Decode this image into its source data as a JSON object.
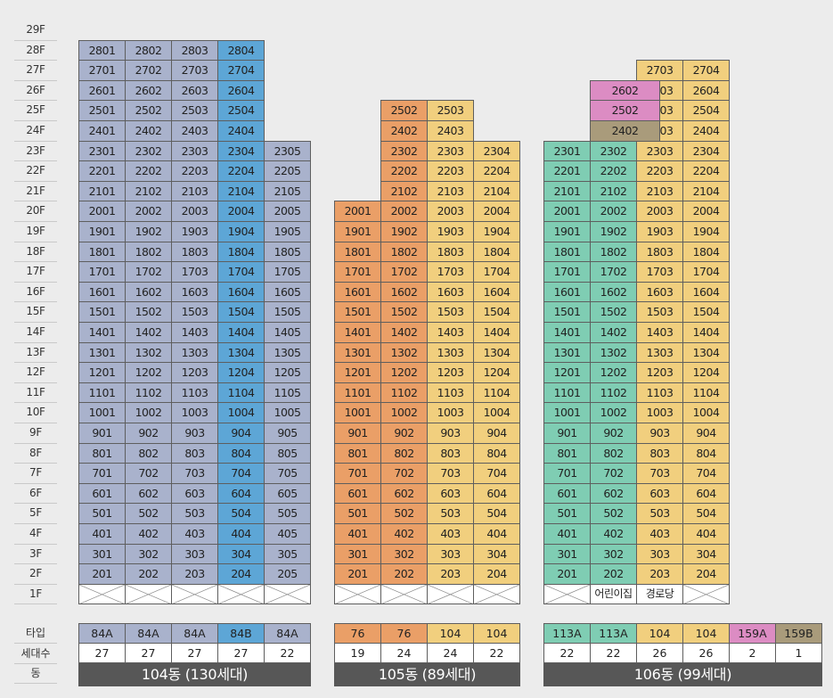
{
  "floor_labels": [
    "29F",
    "28F",
    "27F",
    "26F",
    "25F",
    "24F",
    "23F",
    "22F",
    "21F",
    "20F",
    "19F",
    "18F",
    "17F",
    "16F",
    "15F",
    "14F",
    "13F",
    "12F",
    "11F",
    "10F",
    "9F",
    "8F",
    "7F",
    "6F",
    "5F",
    "4F",
    "3F",
    "2F",
    "1F"
  ],
  "table_labels": {
    "type": "타입",
    "households": "세대수",
    "building": "동"
  },
  "colors": {
    "t84A": "#a9b2cc",
    "t84B": "#5da6d6",
    "t76": "#ea9f67",
    "t104": "#f1cf7e",
    "t113A": "#7fcdb3",
    "t159A": "#dc8cc3",
    "t159B": "#a99b7b"
  },
  "buildings": [
    {
      "name": "104동 (130세대)",
      "columns": [
        {
          "type": "84A",
          "count": "27",
          "color": "t84A",
          "top_floor": 28,
          "one_floor": "empty"
        },
        {
          "type": "84A",
          "count": "27",
          "color": "t84A",
          "top_floor": 28,
          "one_floor": "empty"
        },
        {
          "type": "84A",
          "count": "27",
          "color": "t84A",
          "top_floor": 28,
          "one_floor": "empty"
        },
        {
          "type": "84B",
          "count": "27",
          "color": "t84B",
          "top_floor": 28,
          "one_floor": "empty"
        },
        {
          "type": "84A",
          "count": "22",
          "color": "t84A",
          "top_floor": 23,
          "one_floor": "empty"
        }
      ]
    },
    {
      "name": "105동 (89세대)",
      "columns": [
        {
          "type": "76",
          "count": "19",
          "color": "t76",
          "top_floor": 20,
          "one_floor": "empty"
        },
        {
          "type": "76",
          "count": "24",
          "color": "t76",
          "top_floor": 25,
          "one_floor": "empty"
        },
        {
          "type": "104",
          "count": "24",
          "color": "t104",
          "top_floor": 25,
          "one_floor": "empty"
        },
        {
          "type": "104",
          "count": "22",
          "color": "t104",
          "top_floor": 23,
          "one_floor": "empty"
        }
      ]
    },
    {
      "name": "106동 (99세대)",
      "columns": [
        {
          "type": "113A",
          "count": "22",
          "color": "t113A",
          "top_floor": 23,
          "one_floor": "empty"
        },
        {
          "type": "113A",
          "count": "22",
          "color": "t113A",
          "top_floor": 23,
          "one_floor": "어린이집"
        },
        {
          "type": "104",
          "count": "26",
          "color": "t104",
          "top_floor": 27,
          "one_floor": "경로당"
        },
        {
          "type": "104",
          "count": "26",
          "color": "t104",
          "top_floor": 27,
          "one_floor": "empty"
        }
      ],
      "overlay_cells": [
        {
          "floor": 26,
          "label": "2602",
          "color": "t159A"
        },
        {
          "floor": 25,
          "label": "2502",
          "color": "t159A"
        },
        {
          "floor": 24,
          "label": "2402",
          "color": "t159B"
        }
      ],
      "extra_types": [
        {
          "type": "159A",
          "count": "2",
          "color": "t159A"
        },
        {
          "type": "159B",
          "count": "1",
          "color": "t159B"
        }
      ]
    }
  ]
}
